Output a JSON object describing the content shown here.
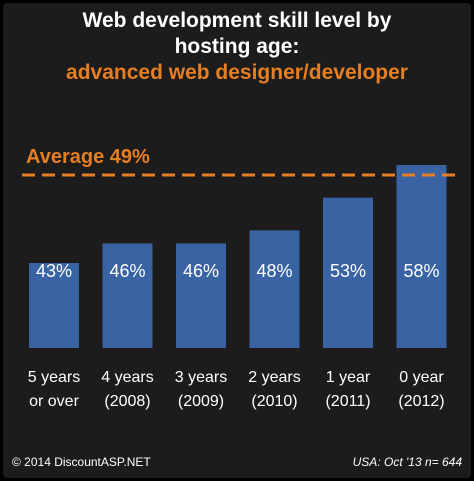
{
  "title": {
    "line1": "Web development skill level by",
    "line2": "hosting age:",
    "line3": "advanced web designer/developer"
  },
  "colors": {
    "background": "#1c1c1c",
    "bar": "#3a63a4",
    "accent": "#e67e22",
    "text": "#ffffff"
  },
  "chart_data": {
    "type": "bar",
    "categories": [
      [
        "5 years",
        "or over"
      ],
      [
        "4 years",
        "(2008)"
      ],
      [
        "3 years",
        "(2009)"
      ],
      [
        "2 years",
        "(2010)"
      ],
      [
        "1 year",
        "(2011)"
      ],
      [
        "0 year",
        "(2012)"
      ]
    ],
    "values": [
      43,
      46,
      46,
      48,
      53,
      58
    ],
    "value_labels": [
      "43%",
      "46%",
      "46%",
      "48%",
      "53%",
      "58%"
    ],
    "average": {
      "value": 49,
      "label": "Average 49%"
    },
    "bars_start_at_value": 30,
    "ylim": [
      30,
      58
    ],
    "grid": false,
    "legend": "none",
    "title": "Web development skill level by hosting age: advanced web designer/developer"
  },
  "footer": {
    "copyright": "© 2014 DiscountASP.NET",
    "source": "USA: Oct '13 n= 644"
  }
}
